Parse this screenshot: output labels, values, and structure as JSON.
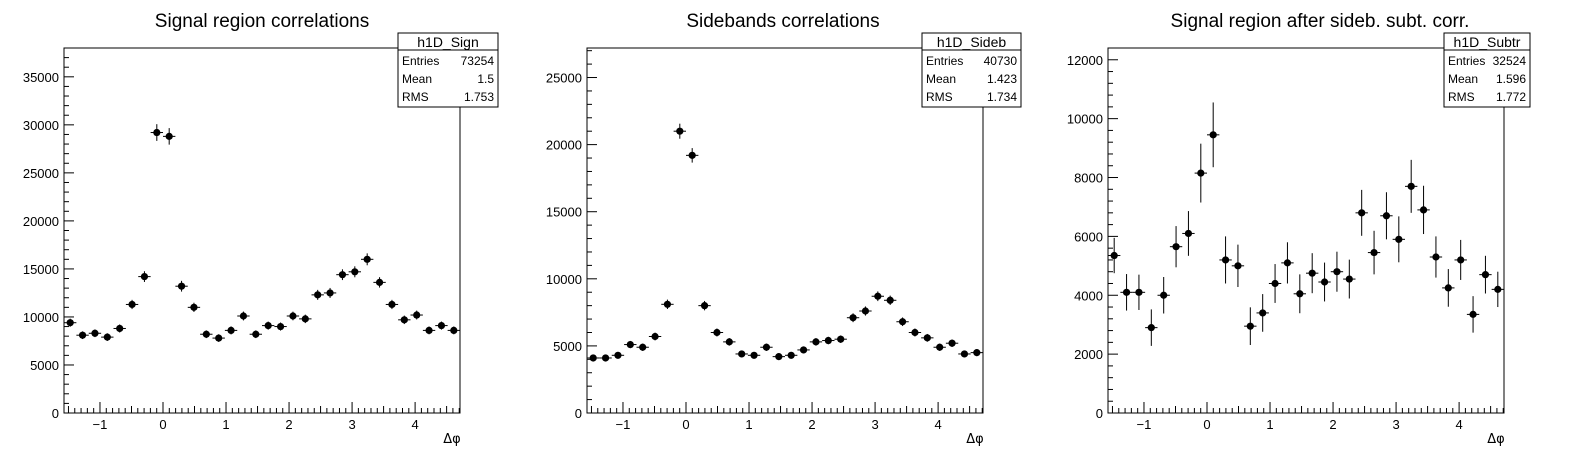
{
  "chart_data": [
    {
      "type": "scatter",
      "title": "Signal region correlations",
      "xlabel": "Δφ",
      "xlim": [
        -1.5708,
        4.7124
      ],
      "ylim": [
        0,
        38000
      ],
      "yticks": [
        0,
        5000,
        10000,
        15000,
        20000,
        25000,
        30000,
        35000
      ],
      "xticks": [
        -1,
        0,
        1,
        2,
        3,
        4
      ],
      "stats": {
        "name": "h1D_Sign",
        "entries": "73254",
        "mean": "1.5",
        "rms": "1.753"
      },
      "x": [
        -1.4726,
        -1.2763,
        -1.0799,
        -0.8836,
        -0.6872,
        -0.4909,
        -0.2945,
        -0.0982,
        0.0982,
        0.2945,
        0.4909,
        0.6872,
        0.8836,
        1.0799,
        1.2763,
        1.4726,
        1.669,
        1.8653,
        2.0617,
        2.258,
        2.4544,
        2.6507,
        2.8471,
        3.0434,
        3.2398,
        3.4361,
        3.6325,
        3.8288,
        4.0252,
        4.2215,
        4.4179,
        4.6142
      ],
      "values": [
        9400,
        8100,
        8300,
        7900,
        8800,
        11300,
        14200,
        29200,
        28800,
        13200,
        11000,
        8200,
        7800,
        8600,
        10100,
        8200,
        9100,
        9000,
        10100,
        9800,
        12300,
        12500,
        14400,
        14700,
        16000,
        13600,
        11300,
        9700,
        10200,
        8600,
        9100,
        8600
      ],
      "errors": [
        420,
        400,
        400,
        400,
        420,
        480,
        560,
        870,
        860,
        560,
        480,
        400,
        400,
        420,
        460,
        400,
        420,
        420,
        450,
        440,
        520,
        520,
        560,
        570,
        620,
        540,
        480,
        440,
        460,
        410,
        420,
        410
      ]
    },
    {
      "type": "scatter",
      "title": "Sidebands correlations",
      "xlabel": "Δφ",
      "xlim": [
        -1.5708,
        4.7124
      ],
      "ylim": [
        0,
        27200
      ],
      "yticks": [
        0,
        5000,
        10000,
        15000,
        20000,
        25000
      ],
      "xticks": [
        -1,
        0,
        1,
        2,
        3,
        4
      ],
      "stats": {
        "name": "h1D_Sideb",
        "entries": "40730",
        "mean": "1.423",
        "rms": "1.734"
      },
      "x": [
        -1.4726,
        -1.2763,
        -1.0799,
        -0.8836,
        -0.6872,
        -0.4909,
        -0.2945,
        -0.0982,
        0.0982,
        0.2945,
        0.4909,
        0.6872,
        0.8836,
        1.0799,
        1.2763,
        1.4726,
        1.669,
        1.8653,
        2.0617,
        2.258,
        2.4544,
        2.6507,
        2.8471,
        3.0434,
        3.2398,
        3.4361,
        3.6325,
        3.8288,
        4.0252,
        4.2215,
        4.4179,
        4.6142
      ],
      "values": [
        4100,
        4100,
        4300,
        5100,
        4900,
        5700,
        8100,
        21000,
        19200,
        8000,
        6000,
        5300,
        4400,
        4300,
        4900,
        4200,
        4300,
        4700,
        5300,
        5400,
        5500,
        7100,
        7600,
        8700,
        8400,
        6800,
        6000,
        5600,
        4900,
        5200,
        4400,
        4500
      ],
      "errors": [
        250,
        250,
        250,
        270,
        270,
        290,
        350,
        560,
        540,
        350,
        300,
        280,
        250,
        250,
        270,
        250,
        250,
        260,
        280,
        280,
        280,
        330,
        340,
        360,
        350,
        320,
        300,
        290,
        270,
        280,
        250,
        260
      ]
    },
    {
      "type": "scatter",
      "title": "Signal region after sideb. subt. corr.",
      "xlabel": "Δφ",
      "xlim": [
        -1.5708,
        4.7124
      ],
      "ylim": [
        0,
        12400
      ],
      "yticks": [
        0,
        2000,
        4000,
        6000,
        8000,
        10000,
        12000
      ],
      "xticks": [
        -1,
        0,
        1,
        2,
        3,
        4
      ],
      "stats": {
        "name": "h1D_Subtr",
        "entries": "32524",
        "mean": "1.596",
        "rms": "1.772"
      },
      "x": [
        -1.4726,
        -1.2763,
        -1.0799,
        -0.8836,
        -0.6872,
        -0.4909,
        -0.2945,
        -0.0982,
        0.0982,
        0.2945,
        0.4909,
        0.6872,
        0.8836,
        1.0799,
        1.2763,
        1.4726,
        1.669,
        1.8653,
        2.0617,
        2.258,
        2.4544,
        2.6507,
        2.8471,
        3.0434,
        3.2398,
        3.4361,
        3.6325,
        3.8288,
        4.0252,
        4.2215,
        4.4179,
        4.6142
      ],
      "values": [
        5350,
        4100,
        4100,
        2900,
        4000,
        5650,
        6100,
        8150,
        9450,
        5200,
        5000,
        2950,
        3400,
        4400,
        5100,
        4050,
        4750,
        4450,
        4800,
        4550,
        6800,
        5450,
        6700,
        5900,
        7700,
        6900,
        5300,
        4250,
        5200,
        3350,
        4700,
        4200
      ],
      "errors": [
        600,
        620,
        600,
        620,
        620,
        700,
        760,
        1000,
        1100,
        800,
        720,
        640,
        640,
        660,
        700,
        660,
        680,
        660,
        680,
        660,
        780,
        740,
        800,
        780,
        900,
        820,
        700,
        640,
        680,
        620,
        640,
        600
      ]
    }
  ]
}
